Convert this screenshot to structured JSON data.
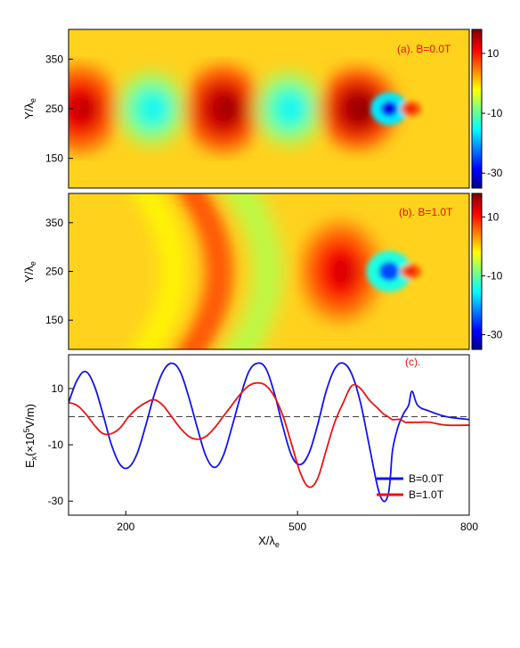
{
  "chart_data": [
    {
      "type": "heatmap",
      "panel": "a",
      "annotation": "(a). B=0.0T",
      "ylabel": "Y/λ",
      "ylabel_sub": "e",
      "ylim": [
        90,
        410
      ],
      "yticks": [
        150,
        250,
        350
      ],
      "xlim": [
        100,
        800
      ],
      "colorbar": {
        "ticks": [
          10,
          -10,
          -30
        ],
        "range": [
          -35,
          18
        ],
        "colormap": "jet"
      },
      "features": [
        {
          "kind": "positive",
          "x": 120,
          "y": 250,
          "rx": 50,
          "ry": 70,
          "value": 15
        },
        {
          "kind": "negative",
          "x": 245,
          "y": 250,
          "rx": 45,
          "ry": 60,
          "value": -16
        },
        {
          "kind": "positive",
          "x": 370,
          "y": 250,
          "rx": 50,
          "ry": 70,
          "value": 17
        },
        {
          "kind": "negative",
          "x": 485,
          "y": 250,
          "rx": 45,
          "ry": 60,
          "value": -16
        },
        {
          "kind": "positive",
          "x": 605,
          "y": 250,
          "rx": 50,
          "ry": 65,
          "value": 18
        },
        {
          "kind": "negative",
          "x": 660,
          "y": 250,
          "rx": 18,
          "ry": 22,
          "value": -30
        },
        {
          "kind": "positive",
          "x": 698,
          "y": 250,
          "rx": 10,
          "ry": 10,
          "value": 12
        }
      ]
    },
    {
      "type": "heatmap",
      "panel": "b",
      "annotation": "(b). B=1.0T",
      "ylabel": "Y/λ",
      "ylabel_sub": "e",
      "ylim": [
        90,
        410
      ],
      "yticks": [
        150,
        250,
        350
      ],
      "xlim": [
        100,
        800
      ],
      "colorbar": {
        "ticks": [
          10,
          -10,
          -30
        ],
        "range": [
          -35,
          18
        ],
        "colormap": "jet"
      },
      "features": [
        {
          "kind": "arc",
          "x": 295,
          "y": 250,
          "width": 40,
          "value": -2
        },
        {
          "kind": "arc",
          "x": 375,
          "y": 250,
          "width": 45,
          "value": 8
        },
        {
          "kind": "arc",
          "x": 460,
          "y": 250,
          "width": 50,
          "value": -6
        },
        {
          "kind": "positive",
          "x": 575,
          "y": 250,
          "rx": 50,
          "ry": 80,
          "value": 14
        },
        {
          "kind": "negative",
          "x": 660,
          "y": 250,
          "rx": 22,
          "ry": 28,
          "value": -25
        },
        {
          "kind": "positive",
          "x": 698,
          "y": 250,
          "rx": 10,
          "ry": 10,
          "value": 12
        }
      ]
    },
    {
      "type": "line",
      "panel": "c",
      "annotation": "(c).",
      "xlabel": "X/λ",
      "xlabel_sub": "e",
      "ylabel_main": "E",
      "ylabel_sub": "x",
      "ylabel_paren": "(×10",
      "ylabel_exp": "5",
      "ylabel_unit": "V/m)",
      "xlim": [
        100,
        800
      ],
      "ylim": [
        -35,
        22
      ],
      "xticks": [
        200,
        500,
        800
      ],
      "yticks": [
        10,
        -10,
        -30
      ],
      "grid": false,
      "reference_line": {
        "y": 0,
        "style": "dashed"
      },
      "legend": "lower-right",
      "series": [
        {
          "name": "B=0.0T",
          "color": "#1414e6",
          "x": [
            100,
            115,
            130,
            145,
            160,
            175,
            190,
            205,
            220,
            235,
            250,
            265,
            280,
            295,
            310,
            325,
            340,
            355,
            370,
            385,
            400,
            415,
            430,
            445,
            460,
            475,
            490,
            505,
            520,
            535,
            550,
            565,
            580,
            595,
            610,
            625,
            640,
            650,
            658,
            662,
            666,
            675,
            685,
            694,
            700,
            710,
            730,
            760,
            800
          ],
          "y": [
            5,
            13,
            16,
            11,
            1,
            -10,
            -17,
            -18,
            -13,
            -3,
            8,
            16,
            19,
            16,
            7,
            -4,
            -14,
            -18,
            -14,
            -4,
            7,
            16,
            19,
            17,
            8,
            -4,
            -14,
            -17,
            -13,
            -3,
            9,
            17,
            19,
            15,
            5,
            -10,
            -25,
            -30,
            -28,
            -22,
            -12,
            -4,
            1,
            4,
            9,
            4,
            2,
            0,
            -1
          ]
        },
        {
          "name": "B=1.0T",
          "color": "#e61414",
          "x": [
            100,
            115,
            130,
            145,
            160,
            175,
            190,
            205,
            220,
            235,
            250,
            265,
            280,
            295,
            310,
            325,
            340,
            355,
            370,
            385,
            400,
            415,
            430,
            445,
            460,
            475,
            490,
            505,
            520,
            535,
            550,
            565,
            580,
            595,
            610,
            625,
            640,
            650,
            658,
            665,
            672,
            680,
            688,
            694,
            700,
            710,
            730,
            760,
            800
          ],
          "y": [
            5,
            4,
            1,
            -3,
            -6,
            -6,
            -4,
            0,
            3,
            5,
            6,
            4,
            0,
            -4,
            -7,
            -8,
            -7,
            -4,
            0,
            4,
            8,
            11,
            12,
            11,
            7,
            0,
            -10,
            -20,
            -25,
            -22,
            -12,
            -2,
            5,
            11,
            10,
            6,
            3,
            1,
            0,
            -1,
            -1,
            -1,
            -2,
            -2,
            -2,
            -2,
            -2,
            -3,
            -3
          ]
        }
      ]
    }
  ]
}
